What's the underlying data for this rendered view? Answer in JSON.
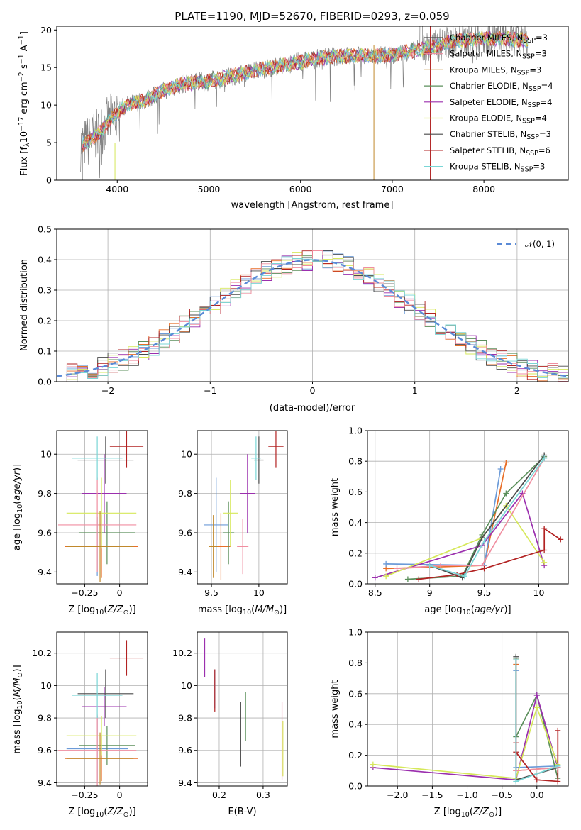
{
  "title": "PLATE=1190, MJD=52670, FIBERID=0293, z=0.059",
  "colors": [
    "#6c9bd8",
    "#e86e27",
    "#5b8f5b",
    "#9b2fae",
    "#d6e85a",
    "#4a4a4a",
    "#b22222",
    "#f08ea0",
    "#c0882b",
    "#7ad6d6"
  ],
  "legend_labels": [
    "Chabrier MILES, N_SSP=3",
    "Salpeter MILES, N_SSP=3",
    "Kroupa MILES, N_SSP=3",
    "Chabrier ELODIE, N_SSP=4",
    "Salpeter ELODIE, N_SSP=4",
    "Kroupa ELODIE, N_SSP=4",
    "Chabrier STELIB, N_SSP=3",
    "Salpeter STELIB, N_SSP=6",
    "Kroupa STELIB, N_SSP=3"
  ],
  "chart_data": [
    {
      "id": "spectrum",
      "type": "line",
      "title": "PLATE=1190, MJD=52670, FIBERID=0293, z=0.059",
      "xlabel": "wavelength [Angstrom, rest frame]",
      "ylabel": "Flux [f_λ 10^-17 erg cm^-2 s^-1 A^-1]",
      "xlim": [
        3340,
        8920
      ],
      "ylim": [
        0,
        20.5
      ],
      "xticks": [
        4000,
        5000,
        6000,
        7000,
        8000
      ],
      "yticks": [
        0,
        5,
        10,
        15,
        20
      ],
      "continuum": {
        "x": [
          3600,
          3700,
          3800,
          3900,
          4000,
          4100,
          4200,
          4300,
          4500,
          4700,
          5000,
          5200,
          5500,
          5800,
          6000,
          6300,
          6600,
          6800,
          7000,
          7200,
          7400,
          7600,
          7800,
          8000,
          8200,
          8400,
          8600
        ],
        "y": [
          4.6,
          5.3,
          6.2,
          7.8,
          9.0,
          10.0,
          10.3,
          10.6,
          11.9,
          12.8,
          13.2,
          13.7,
          14.6,
          15.3,
          15.8,
          16.4,
          16.6,
          16.5,
          16.7,
          17.2,
          17.6,
          18.3,
          18.7,
          18.9,
          18.9,
          18.7,
          18.4
        ]
      },
      "grid": false,
      "legend": "upper right"
    },
    {
      "id": "residuals",
      "type": "step",
      "xlabel": "(data-model)/error",
      "ylabel": "Normed distribution",
      "xlim": [
        -2.5,
        2.5
      ],
      "ylim": [
        0,
        0.5
      ],
      "xticks": [
        -2,
        -1,
        0,
        1,
        2
      ],
      "yticks": [
        0.0,
        0.1,
        0.2,
        0.3,
        0.4,
        0.5
      ],
      "reference": {
        "name": "𝒩(0, 1)",
        "mean": 0,
        "sigma": 1
      },
      "bin_width": 0.1,
      "grid": true,
      "legend": "upper right"
    },
    {
      "id": "age-vs-Z",
      "type": "errorbar",
      "xlabel": "Z [log10(Z/Z⊙)]",
      "ylabel": "age [log10(age/yr)]",
      "xlim": [
        -0.45,
        0.2
      ],
      "ylim": [
        9.34,
        10.12
      ],
      "xticks": [
        -0.25,
        0.0
      ],
      "yticks": [
        9.4,
        9.6,
        9.8,
        10.0
      ],
      "points": [
        {
          "x": -0.16,
          "y": 9.53,
          "xerr": 0.22,
          "yerr": 0.15
        },
        {
          "x": -0.13,
          "y": 9.53,
          "xerr": 0.26,
          "yerr": 0.16
        },
        {
          "x": -0.09,
          "y": 9.6,
          "xerr": 0.2,
          "yerr": 0.16
        },
        {
          "x": -0.11,
          "y": 9.8,
          "xerr": 0.16,
          "yerr": 0.2
        },
        {
          "x": -0.13,
          "y": 9.7,
          "xerr": 0.25,
          "yerr": 0.18
        },
        {
          "x": -0.1,
          "y": 9.97,
          "xerr": 0.2,
          "yerr": 0.12
        },
        {
          "x": 0.05,
          "y": 10.04,
          "xerr": 0.12,
          "yerr": 0.11
        },
        {
          "x": -0.16,
          "y": 9.64,
          "xerr": 0.28,
          "yerr": 0.24
        },
        {
          "x": -0.14,
          "y": 9.53,
          "xerr": 0.24,
          "yerr": 0.18
        },
        {
          "x": -0.16,
          "y": 9.98,
          "xerr": 0.18,
          "yerr": 0.11
        }
      ]
    },
    {
      "id": "age-vs-mass",
      "type": "errorbar",
      "xlabel": "mass [log10(M/M⊙)]",
      "ylabel": "",
      "xlim": [
        9.35,
        10.3
      ],
      "ylim": [
        9.34,
        10.12
      ],
      "xticks": [
        9.5,
        10.0
      ],
      "yticks": [
        9.4,
        9.6,
        9.8,
        10.0
      ],
      "points": [
        {
          "x": 9.55,
          "y": 9.64,
          "xerr": 0.13,
          "yerr": 0.24
        },
        {
          "x": 9.6,
          "y": 9.53,
          "xerr": 0.1,
          "yerr": 0.17
        },
        {
          "x": 9.68,
          "y": 9.6,
          "xerr": 0.06,
          "yerr": 0.16
        },
        {
          "x": 9.88,
          "y": 9.8,
          "xerr": 0.08,
          "yerr": 0.2
        },
        {
          "x": 9.7,
          "y": 9.7,
          "xerr": 0.08,
          "yerr": 0.17
        },
        {
          "x": 10.0,
          "y": 9.97,
          "xerr": 0.05,
          "yerr": 0.12
        },
        {
          "x": 10.18,
          "y": 10.04,
          "xerr": 0.08,
          "yerr": 0.11
        },
        {
          "x": 9.83,
          "y": 9.53,
          "xerr": 0.06,
          "yerr": 0.14
        },
        {
          "x": 9.52,
          "y": 9.53,
          "xerr": 0.05,
          "yerr": 0.16
        },
        {
          "x": 9.97,
          "y": 9.98,
          "xerr": 0.05,
          "yerr": 0.11
        }
      ]
    },
    {
      "id": "weight-vs-age",
      "type": "line",
      "xlabel": "age [log10(age/yr)]",
      "ylabel": "mass weight",
      "xlim": [
        8.43,
        10.27
      ],
      "ylim": [
        0,
        1
      ],
      "xticks": [
        8.5,
        9.0,
        9.5,
        10.0
      ],
      "yticks": [
        0.0,
        0.2,
        0.4,
        0.6,
        0.8,
        1.0
      ],
      "series": [
        {
          "x": [
            8.6,
            9.5,
            9.7
          ],
          "y": [
            0.1,
            0.12,
            0.79
          ]
        },
        {
          "x": [
            8.6,
            9.5,
            9.65
          ],
          "y": [
            0.13,
            0.12,
            0.75
          ]
        },
        {
          "x": [
            8.8,
            9.3,
            9.48,
            9.7,
            10.05
          ],
          "y": [
            0.03,
            0.05,
            0.32,
            0.59,
            0.83
          ]
        },
        {
          "x": [
            8.5,
            9.48,
            9.85,
            10.05
          ],
          "y": [
            0.04,
            0.25,
            0.59,
            0.12
          ]
        },
        {
          "x": [
            8.6,
            9.48,
            9.7,
            10.05
          ],
          "y": [
            0.05,
            0.3,
            0.51,
            0.14
          ]
        },
        {
          "x": [
            9.0,
            9.3,
            9.48,
            10.05
          ],
          "y": [
            0.12,
            0.04,
            0.3,
            0.84
          ]
        },
        {
          "x": [
            8.9,
            9.25,
            9.5,
            10.05,
            10.05,
            10.2
          ],
          "y": [
            0.03,
            0.06,
            0.1,
            0.22,
            0.36,
            0.29
          ]
        },
        {
          "x": [
            8.7,
            9.1,
            9.48,
            10.05
          ],
          "y": [
            0.1,
            0.12,
            0.12,
            0.82
          ]
        },
        {
          "x": [
            9.0,
            9.32,
            9.5,
            10.05
          ],
          "y": [
            0.12,
            0.05,
            0.28,
            0.82
          ]
        }
      ]
    },
    {
      "id": "mass-vs-Z",
      "type": "errorbar",
      "xlabel": "Z [log10(Z/Z⊙)]",
      "ylabel": "mass [log10(M/M⊙)]",
      "xlim": [
        -0.45,
        0.2
      ],
      "ylim": [
        9.38,
        10.33
      ],
      "xticks": [
        -0.25,
        0.0
      ],
      "yticks": [
        9.4,
        9.6,
        9.8,
        10.0,
        10.2
      ],
      "points": [
        {
          "x": -0.16,
          "y": 9.61,
          "xerr": 0.22,
          "yerr": 0.2
        },
        {
          "x": -0.13,
          "y": 9.55,
          "xerr": 0.26,
          "yerr": 0.14
        },
        {
          "x": -0.09,
          "y": 9.63,
          "xerr": 0.2,
          "yerr": 0.12
        },
        {
          "x": -0.11,
          "y": 9.87,
          "xerr": 0.16,
          "yerr": 0.12
        },
        {
          "x": -0.13,
          "y": 9.69,
          "xerr": 0.25,
          "yerr": 0.12
        },
        {
          "x": -0.1,
          "y": 9.95,
          "xerr": 0.2,
          "yerr": 0.15
        },
        {
          "x": 0.05,
          "y": 10.17,
          "xerr": 0.12,
          "yerr": 0.11
        },
        {
          "x": -0.16,
          "y": 9.6,
          "xerr": 0.28,
          "yerr": 0.22
        },
        {
          "x": -0.14,
          "y": 9.55,
          "xerr": 0.24,
          "yerr": 0.16
        },
        {
          "x": -0.16,
          "y": 9.94,
          "xerr": 0.18,
          "yerr": 0.14
        }
      ]
    },
    {
      "id": "mass-vs-EBV",
      "type": "errorbar",
      "xlabel": "E(B-V)",
      "ylabel": "",
      "xlim": [
        0.15,
        0.355
      ],
      "ylim": [
        9.38,
        10.33
      ],
      "xticks": [
        0.2,
        0.3
      ],
      "yticks": [
        9.4,
        9.6,
        9.8,
        10.0,
        10.2
      ],
      "points": [
        {
          "x": 0.19,
          "y": 9.98,
          "yerr": 0.12
        },
        {
          "x": 0.248,
          "y": 9.72,
          "yerr": 0.18
        },
        {
          "x": 0.26,
          "y": 9.81,
          "yerr": 0.15
        },
        {
          "x": 0.167,
          "y": 10.17,
          "yerr": 0.12
        },
        {
          "x": 0.345,
          "y": 9.61,
          "yerr": 0.17
        },
        {
          "x": 0.249,
          "y": 9.7,
          "yerr": 0.2
        },
        {
          "x": 0.19,
          "y": 9.97,
          "yerr": 0.13
        },
        {
          "x": 0.343,
          "y": 9.66,
          "yerr": 0.24
        }
      ]
    },
    {
      "id": "weight-vs-Z",
      "type": "line",
      "xlabel": "Z [log10(Z/Z⊙)]",
      "ylabel": "mass weight",
      "xlim": [
        -2.43,
        0.45
      ],
      "ylim": [
        0,
        1
      ],
      "xticks": [
        -2.0,
        -1.5,
        -1.0,
        -0.5,
        0.0
      ],
      "yticks": [
        0.0,
        0.2,
        0.4,
        0.6,
        0.8,
        1.0
      ],
      "xticklabels": [
        "−2.0",
        "−1.5",
        "−1.0",
        "−0.5",
        "0.0"
      ],
      "series": [
        {
          "x": [
            -0.3,
            -0.3,
            0.3
          ],
          "y": [
            0.79,
            0.1,
            0.12
          ]
        },
        {
          "x": [
            -0.3,
            -0.3,
            0.3
          ],
          "y": [
            0.75,
            0.12,
            0.13
          ]
        },
        {
          "x": [
            -0.3,
            -0.3,
            0.0,
            0.3
          ],
          "y": [
            0.83,
            0.32,
            0.59,
            0.05
          ]
        },
        {
          "x": [
            -2.35,
            -0.3,
            0.0,
            0.3
          ],
          "y": [
            0.12,
            0.04,
            0.59,
            0.12
          ]
        },
        {
          "x": [
            -2.35,
            -0.3,
            0.0,
            0.3
          ],
          "y": [
            0.14,
            0.05,
            0.51,
            0.14
          ]
        },
        {
          "x": [
            -0.3,
            -0.3,
            0.3
          ],
          "y": [
            0.84,
            0.04,
            0.12
          ]
        },
        {
          "x": [
            -0.3,
            -0.3,
            0.0,
            0.3,
            0.3
          ],
          "y": [
            0.28,
            0.22,
            0.04,
            0.03,
            0.36
          ]
        },
        {
          "x": [
            -0.3,
            -0.3,
            0.3
          ],
          "y": [
            0.82,
            0.1,
            0.12
          ]
        },
        {
          "x": [
            -0.3,
            -0.3,
            0.3
          ],
          "y": [
            0.82,
            0.03,
            0.13
          ]
        }
      ]
    }
  ]
}
